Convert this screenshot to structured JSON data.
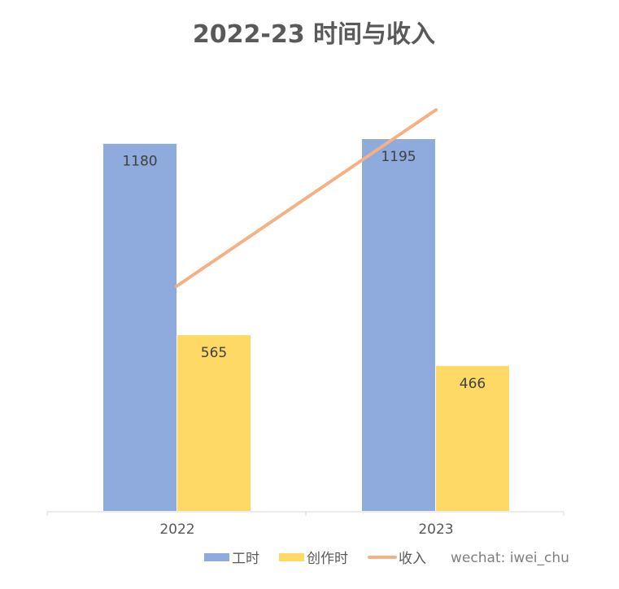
{
  "chart_data": {
    "type": "bar",
    "title": "2022-23 时间与收入",
    "categories": [
      "2022",
      "2023"
    ],
    "series": [
      {
        "name": "工时",
        "type": "bar",
        "values": [
          1180,
          1195
        ],
        "color": "#8faadc"
      },
      {
        "name": "创作时",
        "type": "bar",
        "values": [
          565,
          466
        ],
        "color": "#ffd966"
      },
      {
        "name": "收入",
        "type": "line",
        "values": [
          0.56,
          1.0
        ],
        "color": "#f4b183"
      }
    ],
    "ylim": [
      0,
      1195
    ],
    "legend_position": "bottom-right",
    "grid": false
  },
  "watermark": "wechat: iwei_chu"
}
